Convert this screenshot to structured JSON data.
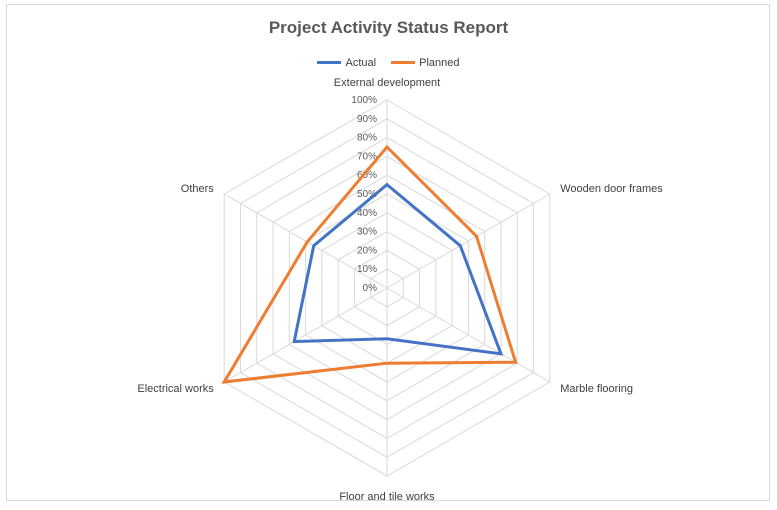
{
  "chart_data": {
    "type": "radar",
    "title": "Project Activity Status Report",
    "categories": [
      "External development",
      "Wooden door frames",
      "Marble flooring",
      "Floor and tile works",
      "Electrical works",
      "Others"
    ],
    "ticks": [
      "0%",
      "10%",
      "20%",
      "30%",
      "40%",
      "50%",
      "60%",
      "70%",
      "80%",
      "90%",
      "100%"
    ],
    "rmin": 0,
    "rmax": 100,
    "grid": true,
    "legend_position": "top",
    "series": [
      {
        "name": "Actual",
        "color": "#4472C4",
        "values": [
          55,
          45,
          70,
          27,
          57,
          45
        ]
      },
      {
        "name": "Planned",
        "color": "#ED7D31",
        "values": [
          75,
          55,
          79,
          40,
          100,
          49
        ]
      }
    ]
  }
}
